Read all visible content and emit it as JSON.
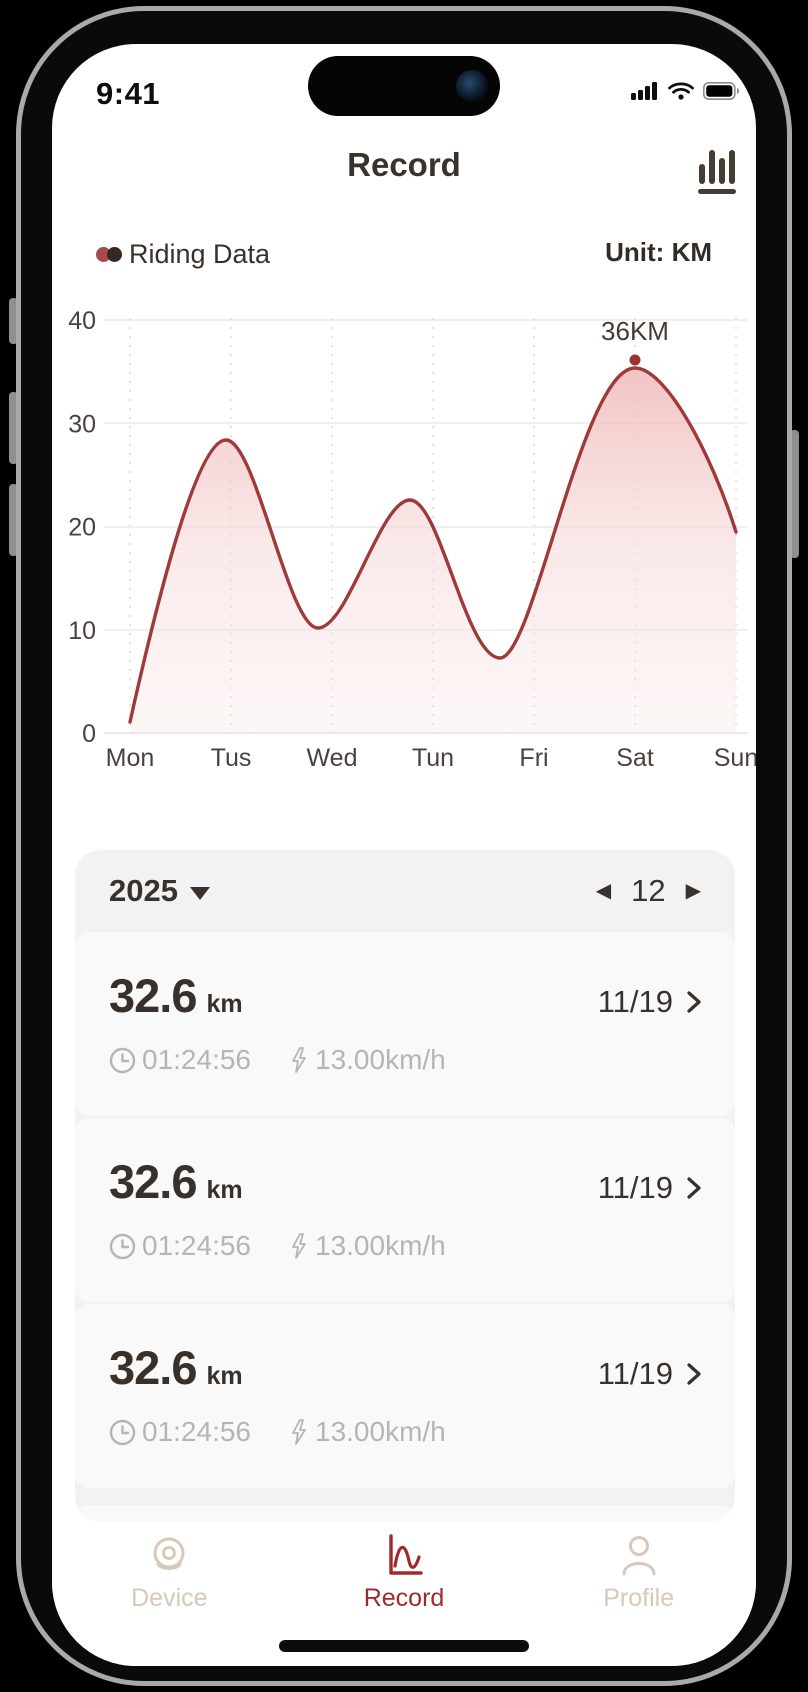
{
  "status_bar": {
    "time": "9:41",
    "icons": [
      "cellular-signal",
      "wifi",
      "battery-full"
    ]
  },
  "header": {
    "title": "Record",
    "right_icon": "histogram-icon"
  },
  "chart": {
    "legend_label": "Riding Data",
    "unit_label": "Unit: KM"
  },
  "chart_data": {
    "type": "area",
    "title": "Riding Data",
    "unit": "KM",
    "categories": [
      "Mon",
      "Tus",
      "Wed",
      "Tun",
      "Fri",
      "Sat",
      "Sun"
    ],
    "values": [
      2,
      28.5,
      10,
      22.5,
      7,
      36,
      19.5
    ],
    "yticks": [
      0,
      10,
      20,
      30,
      40
    ],
    "ylim": [
      0,
      40
    ],
    "grid": true,
    "legend_position": "top-left",
    "line_color": "#a03a3a",
    "fill_color": "#f3c9c9",
    "annotation": {
      "label": "36KM",
      "category": "Sat",
      "value": 36
    }
  },
  "record_card": {
    "year": "2025",
    "month": "12",
    "records": [
      {
        "distance": "32.6",
        "unit": "km",
        "date": "11/19",
        "duration": "01:24:56",
        "speed": "13.00km/h"
      },
      {
        "distance": "32.6",
        "unit": "km",
        "date": "11/19",
        "duration": "01:24:56",
        "speed": "13.00km/h"
      },
      {
        "distance": "32.6",
        "unit": "km",
        "date": "11/19",
        "duration": "01:24:56",
        "speed": "13.00km/h"
      }
    ]
  },
  "tab_bar": {
    "items": [
      {
        "label": "Device",
        "active": false
      },
      {
        "label": "Record",
        "active": true
      },
      {
        "label": "Profile",
        "active": false
      }
    ]
  },
  "colors": {
    "accent_red": "#9e2b2b",
    "curve_red": "#a03a3a",
    "tab_inactive": "#d8c8ba",
    "card_bg": "#f2f2f3",
    "sub_text": "#b7b5b3"
  }
}
